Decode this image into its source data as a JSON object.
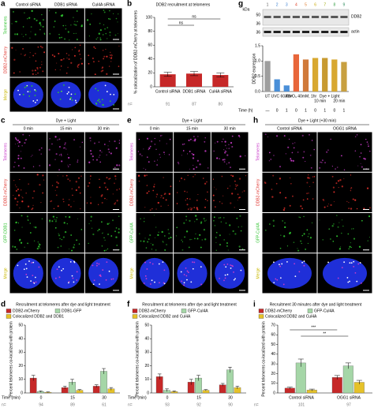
{
  "image_panels": [
    {
      "label": "a",
      "columns": [
        "Control siRNA",
        "DDB1 siRNA",
        "Cul4A siRNA"
      ],
      "rows": [
        "Telomeres",
        "DDB2-mCherry",
        "Merge"
      ],
      "row_colors": [
        "#2fc42f",
        "#e0302a",
        "#c9b800"
      ]
    },
    {
      "label": "c",
      "title": "Dye + Light",
      "columns": [
        "0 min",
        "15 min",
        "30 min"
      ],
      "rows": [
        "Telomeres",
        "DDB2-mCherry",
        "GFP-DDB1",
        "Merge"
      ],
      "row_colors": [
        "#c93cc9",
        "#e0302a",
        "#2fc42f",
        "#c9b800"
      ]
    },
    {
      "label": "e",
      "title": "Dye + Light",
      "columns": [
        "0 min",
        "15 min",
        "30 min"
      ],
      "rows": [
        "Telomeres",
        "DDB2-mCherry",
        "GFP-Cul4A",
        "Merge"
      ],
      "row_colors": [
        "#c93cc9",
        "#e0302a",
        "#2fc42f",
        "#c9b800"
      ]
    },
    {
      "label": "h",
      "title": "Dye + Light (+30 min)",
      "columns": [
        "Control siRNA",
        "OGG1 siRNA"
      ],
      "rows": [
        "Telomeres",
        "DDB2-mCherry",
        "GFP-Cul4A",
        "Merge"
      ],
      "row_colors": [
        "#c93cc9",
        "#e0302a",
        "#2fc42f",
        "#c9b800"
      ]
    }
  ],
  "blot": {
    "label": "g",
    "kda_label": "kDa",
    "lanes": [
      "1",
      "2",
      "3",
      "4",
      "5",
      "6",
      "7",
      "8",
      "9"
    ],
    "lane_colors": [
      "#555555",
      "#3a7fd0",
      "#3a7fd0",
      "#e0442a",
      "#e07a2a",
      "#c9a800",
      "#9aa800",
      "#3aa04a",
      "#2a8a5a"
    ],
    "markers": [
      "50",
      "36",
      "36"
    ],
    "bands": [
      "DDB2",
      "actin"
    ]
  },
  "chart_data": [
    {
      "type": "bar",
      "label": "b",
      "title": "DDB2 recruitment at telomeres",
      "y_label": "% colocalization of DDB2-mCherry at telomeres",
      "categories": [
        "Control siRNA",
        "DDB1 siRNA",
        "Cul4A siRNA"
      ],
      "values": [
        18,
        19,
        17
      ],
      "errors": [
        3,
        3,
        3
      ],
      "color": "#c62828",
      "ylim": [
        0,
        100
      ],
      "yticks": [
        0,
        20,
        40,
        60,
        80,
        100
      ],
      "n_label": "n=",
      "n": [
        91,
        87,
        80
      ],
      "annotations": [
        "ns",
        "ns"
      ]
    },
    {
      "type": "bar",
      "y_label": "DDB2 expression",
      "x_label": "Time (h)",
      "categories": [
        "—",
        "0",
        "1",
        "0",
        "1",
        "0",
        "1",
        "0",
        "1"
      ],
      "values": [
        1.0,
        0.4,
        0.2,
        1.22,
        1.05,
        1.1,
        1.1,
        1.05,
        0.97
      ],
      "colors": [
        "#9e9e9e",
        "#4a8fd8",
        "#4a8fd8",
        "#e8663a",
        "#d07a3a",
        "#d8a830",
        "#c89a30",
        "#d8a830",
        "#c8a040"
      ],
      "groups": [
        "UT",
        "UVC 60J/m²",
        "KBrO₃ 40mM, 1hr",
        "Dye + Light",
        "10 min",
        "20 min"
      ],
      "ylim": [
        0,
        1.5
      ],
      "yticks": [
        {
          "value": 0,
          "label": "0.0"
        },
        {
          "value": 0.5,
          "label": "0.5"
        },
        {
          "value": 1,
          "label": "1.0"
        },
        {
          "value": 1.5,
          "label": "1.5"
        }
      ]
    },
    {
      "type": "grouped_bar",
      "label": "d",
      "title": "Recruitment at telomeres after dye and light treatment",
      "y_label": "Percent telomeres co-localized with protein",
      "x_label": "Time (min)",
      "categories": [
        "0",
        "15",
        "30"
      ],
      "series": [
        {
          "name": "DDB2-mCherry",
          "color": "#c62828",
          "values": [
            11,
            4,
            5
          ],
          "errors": [
            2,
            1,
            1
          ]
        },
        {
          "name": "DDB1-GFP",
          "color": "#a5d6a7",
          "values": [
            1,
            8,
            16
          ],
          "errors": [
            0.5,
            2,
            2
          ]
        },
        {
          "name": "Colocalized DDB2 and DDB1",
          "color": "#e6c229",
          "values": [
            0.5,
            2,
            3
          ],
          "errors": [
            0.3,
            0.5,
            1
          ]
        }
      ],
      "ylim": [
        0,
        50
      ],
      "yticks": [
        0,
        10,
        20,
        30,
        40,
        50
      ],
      "n_label": "n=",
      "n": [
        94,
        89,
        61
      ]
    },
    {
      "type": "grouped_bar",
      "label": "f",
      "title": "Recruitment at telomeres after dye and light treatment",
      "y_label": "Percent telomeres co-localized with protein",
      "x_label": "Time (min)",
      "categories": [
        "0",
        "15",
        "30"
      ],
      "series": [
        {
          "name": "DDB2-mCherry",
          "color": "#c62828",
          "values": [
            12,
            8,
            6
          ],
          "errors": [
            2,
            2,
            1
          ]
        },
        {
          "name": "GFP-Cul4A",
          "color": "#a5d6a7",
          "values": [
            2,
            11,
            17
          ],
          "errors": [
            1,
            2,
            2
          ]
        },
        {
          "name": "Colocalized DDB2 and Cul4A",
          "color": "#e6c229",
          "values": [
            1,
            2,
            4
          ],
          "errors": [
            0.5,
            0.5,
            1
          ]
        }
      ],
      "ylim": [
        0,
        50
      ],
      "yticks": [
        0,
        10,
        20,
        30,
        40,
        50
      ],
      "n_label": "n=",
      "n": [
        93,
        92,
        90
      ]
    },
    {
      "type": "grouped_bar",
      "label": "i",
      "title": "Recruitment 30 minutes after dye and light treatment",
      "y_label": "Percent telomeres co-localized with protein",
      "categories": [
        "Control siRNA",
        "OGG1 siRNA"
      ],
      "series": [
        {
          "name": "DDB2-mCherry",
          "color": "#c62828",
          "values": [
            5,
            16
          ],
          "errors": [
            1,
            2
          ]
        },
        {
          "name": "GFP-Cul4A",
          "color": "#a5d6a7",
          "values": [
            31,
            28
          ],
          "errors": [
            4,
            3
          ]
        },
        {
          "name": "Colocalized DDB2 and Cul4A",
          "color": "#e6c229",
          "values": [
            3,
            11
          ],
          "errors": [
            1,
            2
          ]
        }
      ],
      "ylim": [
        0,
        70
      ],
      "yticks": [
        0,
        10,
        20,
        30,
        40,
        50,
        60,
        70
      ],
      "n_label": "n=",
      "n": [
        101,
        97
      ],
      "annotations": [
        "***",
        "**"
      ]
    }
  ]
}
